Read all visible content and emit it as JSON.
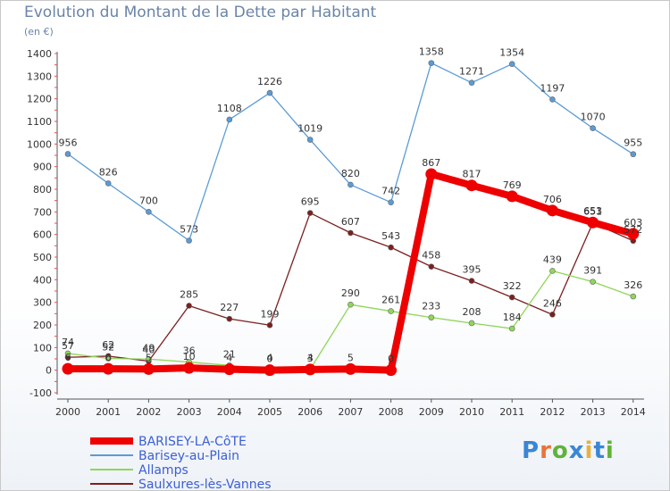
{
  "title": "Evolution du Montant de la Dette par Habitant",
  "unit": "(en €)",
  "brand": {
    "name": "Proxiti",
    "letter_colors": [
      "#3a86d6",
      "#e8743b",
      "#5fb33a",
      "#3a86d6",
      "#e8b13b",
      "#3a86d6",
      "#5fb33a"
    ]
  },
  "chart_data": {
    "type": "line",
    "categories": [
      "2000",
      "2001",
      "2002",
      "2003",
      "2004",
      "2005",
      "2006",
      "2007",
      "2008",
      "2009",
      "2010",
      "2011",
      "2012",
      "2013",
      "2014"
    ],
    "ylim": [
      -100,
      1400
    ],
    "yticks": [
      -100,
      0,
      100,
      200,
      300,
      400,
      500,
      600,
      700,
      800,
      900,
      1000,
      1100,
      1200,
      1300,
      1400
    ],
    "grid": false,
    "legend_position": "bottom-left",
    "series": [
      {
        "name": "Barisey-au-Plain",
        "color": "#5b9bd5",
        "values": [
          956,
          826,
          700,
          573,
          1108,
          1226,
          1019,
          820,
          742,
          1358,
          1271,
          1354,
          1197,
          1070,
          955
        ],
        "labels": [
          "956",
          "826",
          "700",
          "573",
          "1108",
          "1226",
          "1019",
          "820",
          "742",
          "1358",
          "1271",
          "1354",
          "1197",
          "1070",
          "955"
        ]
      },
      {
        "name": "Saulxures-lès-Vannes",
        "color": "#7b1f1f",
        "values": [
          57,
          62,
          40,
          285,
          227,
          199,
          695,
          607,
          543,
          458,
          395,
          322,
          246,
          651,
          572
        ],
        "labels": [
          "57",
          "62",
          "40",
          "285",
          "227",
          "199",
          "695",
          "607",
          "543",
          "458",
          "395",
          "322",
          "246",
          "651",
          "572"
        ]
      },
      {
        "name": "Allamps",
        "color": "#8fd65a",
        "values": [
          74,
          52,
          49,
          36,
          21,
          4,
          4,
          290,
          261,
          233,
          208,
          184,
          439,
          391,
          326
        ],
        "labels": [
          "74",
          "52",
          "49",
          "36",
          "21",
          "4",
          "4",
          "290",
          "261",
          "233",
          "208",
          "184",
          "439",
          "391",
          "326"
        ]
      },
      {
        "name": "BARISEY-LA-CôTE",
        "color": "#ee0000",
        "values": [
          6,
          6,
          5,
          10,
          4,
          0,
          3,
          5,
          0,
          867,
          817,
          769,
          706,
          653,
          603
        ],
        "labels": [
          "6",
          "6",
          "5",
          "10",
          "4",
          "0",
          "3",
          "5",
          "0",
          "867",
          "817",
          "769",
          "706",
          "653",
          "603"
        ]
      }
    ],
    "legend_order": [
      "BARISEY-LA-CôTE",
      "Barisey-au-Plain",
      "Allamps",
      "Saulxures-lès-Vannes"
    ]
  }
}
